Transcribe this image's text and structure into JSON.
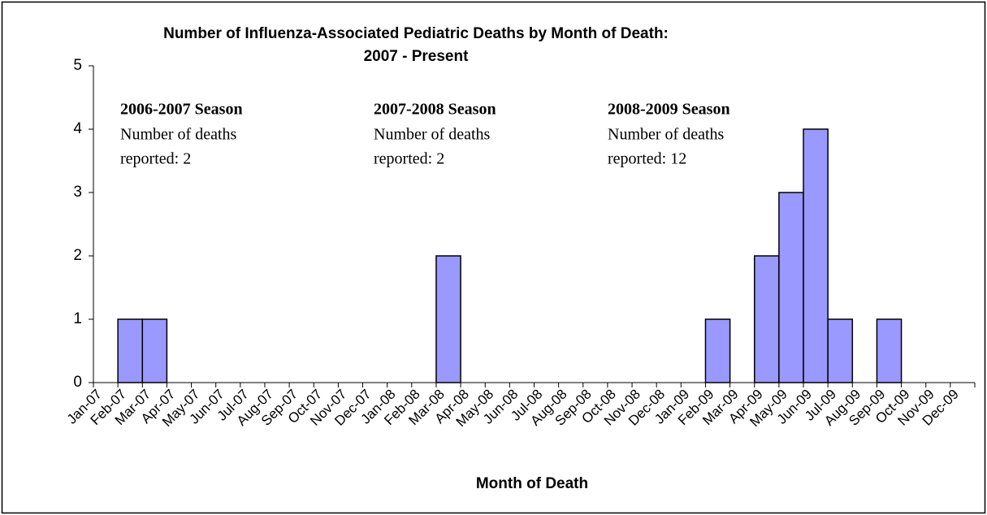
{
  "chart_data": {
    "type": "bar",
    "title": [
      "Number of Influenza-Associated Pediatric Deaths by Month of Death:",
      "2007 - Present"
    ],
    "x_label": "Month of Death",
    "categories": [
      "Jan-07",
      "Feb-07",
      "Mar-07",
      "Apr-07",
      "May-07",
      "Jun-07",
      "Jul-07",
      "Aug-07",
      "Sep-07",
      "Oct-07",
      "Nov-07",
      "Dec-07",
      "Jan-08",
      "Feb-08",
      "Mar-08",
      "Apr-08",
      "May-08",
      "Jun-08",
      "Jul-08",
      "Aug-08",
      "Sep-08",
      "Oct-08",
      "Nov-08",
      "Dec-08",
      "Jan-09",
      "Feb-09",
      "Mar-09",
      "Apr-09",
      "May-09",
      "Jun-09",
      "Jul-09",
      "Aug-09",
      "Sep-09",
      "Oct-09",
      "Nov-09",
      "Dec-09"
    ],
    "values": [
      0,
      1,
      1,
      0,
      0,
      0,
      0,
      0,
      0,
      0,
      0,
      0,
      0,
      0,
      2,
      0,
      0,
      0,
      0,
      0,
      0,
      0,
      0,
      0,
      0,
      1,
      0,
      2,
      3,
      4,
      1,
      0,
      1,
      0,
      0,
      0
    ],
    "color": "#9999ff",
    "ylim": [
      0,
      5
    ],
    "yticks": [
      0,
      1,
      2,
      3,
      4,
      5
    ],
    "annotations": [
      {
        "title": "2006-2007 Season",
        "lines": [
          "Number of deaths",
          "reported: 2"
        ]
      },
      {
        "title": "2007-2008 Season",
        "lines": [
          "Number of deaths",
          "reported: 2"
        ]
      },
      {
        "title": "2008-2009 Season",
        "lines": [
          "Number of deaths",
          "reported: 12"
        ]
      }
    ]
  }
}
